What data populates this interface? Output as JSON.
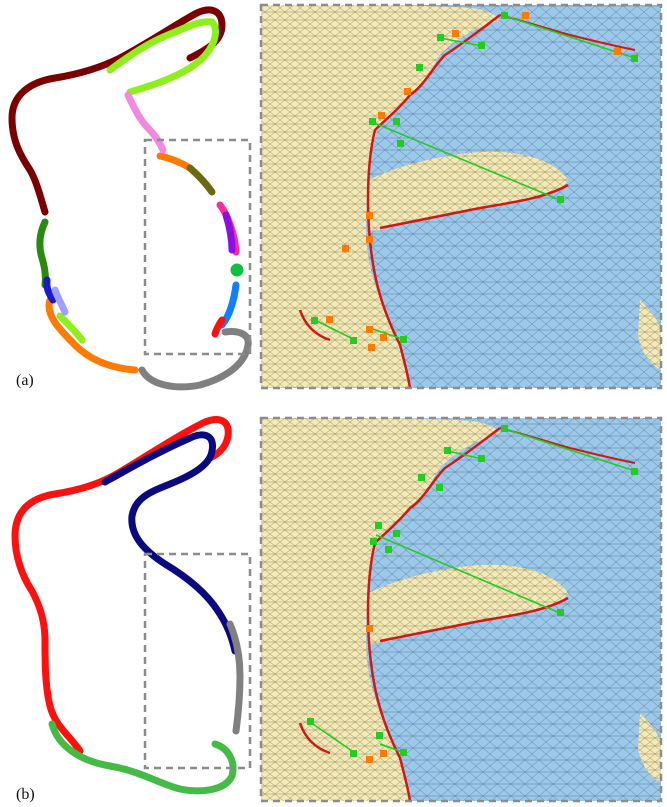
{
  "panels": [
    {
      "label": "(a)"
    },
    {
      "label": "(b)"
    }
  ],
  "colors": {
    "frame": "#8c8c8c",
    "mesh_front": "#f4eab4",
    "mesh_back": "#9cc9ea",
    "mesh_line": "#404040",
    "boundary": "#d01818",
    "marker_green": "#22cc22",
    "marker_orange": "#ff7a00",
    "segment_a": [
      "#7a0000",
      "#8ef01a",
      "#f08ae0",
      "#ff7a00",
      "#6a6a10",
      "#2a8a10",
      "#ff2aa0",
      "#8a10e0",
      "#10c040",
      "#1080ff",
      "#ff1010",
      "#808080",
      "#1a1ac8",
      "#a0a0ff"
    ],
    "segment_b": [
      "#ff1010",
      "#0a0a80",
      "#808080",
      "#44bb44"
    ]
  }
}
